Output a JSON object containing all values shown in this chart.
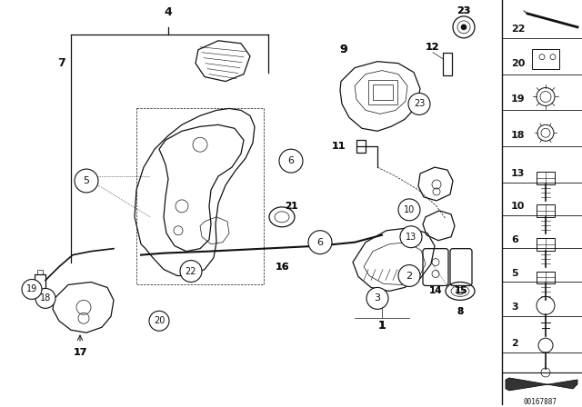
{
  "bg_color": "#ffffff",
  "image_id": "00167887",
  "fig_width": 6.4,
  "fig_height": 4.48,
  "dpi": 100,
  "line_color": "#111111",
  "gray_light": "#888888",
  "gray_mid": "#555555"
}
